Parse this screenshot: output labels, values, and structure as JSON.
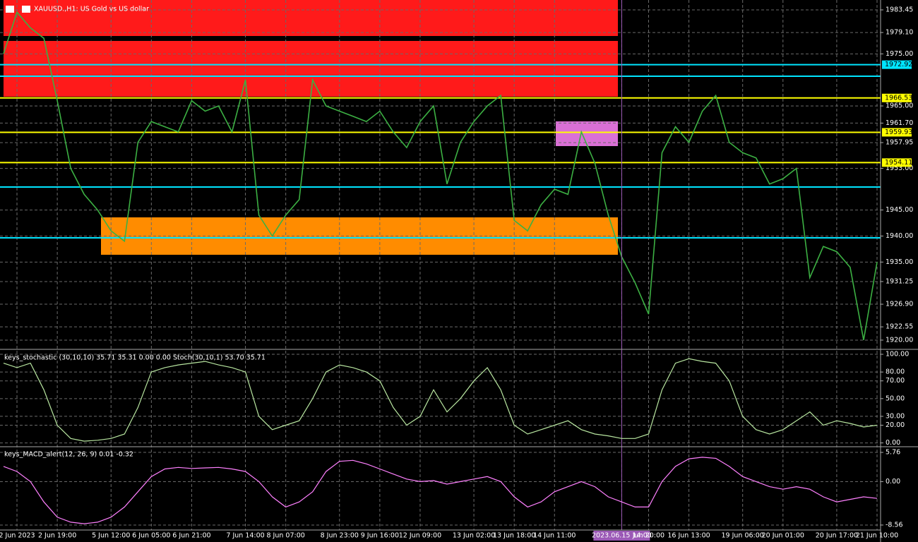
{
  "chart_data": [
    {
      "type": "line",
      "title": "XAUUSD.,H1: US Gold vs US dollar",
      "color": "#3cb043",
      "categories": [
        null,
        "2 Jun 2023",
        null,
        null,
        "2 Jun 19:00",
        null,
        null,
        null,
        "5 Jun 12:00",
        null,
        null,
        "6 Jun 05:00",
        null,
        null,
        "6 Jun 21:00",
        null,
        null,
        null,
        "7 Jun 14:00",
        null,
        null,
        "8 Jun 07:00",
        null,
        null,
        null,
        "8 Jun 23:00",
        null,
        null,
        "9 Jun 16:00",
        null,
        null,
        "12 Jun 09:00",
        null,
        null,
        null,
        "13 Jun 02:00",
        null,
        null,
        "13 Jun 18:00",
        null,
        null,
        "14 Jun 11:00",
        null,
        null,
        null,
        null,
        "2023.06.15 14:00",
        null,
        "Jun 20:00",
        null,
        null,
        "16 Jun 13:00",
        null,
        null,
        null,
        "19 Jun 06:00",
        null,
        null,
        "20 Jun 01:00",
        null,
        null,
        null,
        "20 Jun 17:00",
        null,
        null,
        "21 Jun 10:00"
      ],
      "values": [
        1975,
        1983,
        1980,
        1978,
        1966,
        1953,
        1948,
        1945,
        1941,
        1939,
        1958,
        1962,
        1961,
        1960,
        1966,
        1964,
        1965,
        1960,
        1970,
        1944,
        1940,
        1944,
        1947,
        1970,
        1965,
        1964,
        1963,
        1962,
        1964,
        1960,
        1957,
        1962,
        1965,
        1950,
        1958,
        1962,
        1965,
        1967,
        1943,
        1941,
        1946,
        1949,
        1948,
        1960,
        1954,
        1944,
        1936,
        1931,
        1925,
        1956,
        1961,
        1958,
        1964,
        1967,
        1958,
        1956,
        1955,
        1950,
        1951,
        1953,
        1932,
        1938,
        1937,
        1934,
        1920,
        1935
      ],
      "vline_category": 46,
      "ylim": [
        1918.5,
        1985.35
      ],
      "yticks": [
        {
          "value": 1983.45,
          "label": "1983.45"
        },
        {
          "value": 1979.1,
          "label": "1979.10"
        },
        {
          "value": 1975,
          "label": "1975.00"
        },
        {
          "value": 1965,
          "label": "1965.00"
        },
        {
          "value": 1961.7,
          "label": "1961.70"
        },
        {
          "value": 1957.95,
          "label": "1957.95"
        },
        {
          "value": 1953,
          "label": "1953.00"
        },
        {
          "value": 1945,
          "label": "1945.00"
        },
        {
          "value": 1940,
          "label": "1940.00"
        },
        {
          "value": 1935,
          "label": "1935.00"
        },
        {
          "value": 1931.25,
          "label": "1931.25"
        },
        {
          "value": 1926.9,
          "label": "1926.90"
        },
        {
          "value": 1922.55,
          "label": "1922.55"
        },
        {
          "value": 1920,
          "label": "1920.00"
        }
      ],
      "levels": [
        {
          "value": 1972.92,
          "color": "#00e5ff",
          "labeled": true
        },
        {
          "value": 1970.7,
          "color": "#00e5ff"
        },
        {
          "value": 1966.53,
          "color": "#ffff00",
          "labeled": true
        },
        {
          "value": 1959.93,
          "color": "#ffff00",
          "labeled": true
        },
        {
          "value": 1954.11,
          "color": "#ffff00",
          "labeled": true
        },
        {
          "value": 1949.42,
          "color": "#00e5ff"
        },
        {
          "value": 1939.66,
          "color": "#00e5ff"
        }
      ],
      "grid": true
    },
    {
      "type": "line",
      "title": "keys_stochastic (30,10,10) 35.71 35.31 0.00 0.00 Stoch(30,10,1) 53.70 35.71",
      "color": "#b8e6a0",
      "values": [
        90,
        85,
        90,
        60,
        20,
        5,
        2,
        3,
        5,
        10,
        40,
        80,
        85,
        88,
        90,
        92,
        88,
        85,
        80,
        30,
        15,
        20,
        25,
        50,
        80,
        88,
        85,
        80,
        70,
        40,
        20,
        30,
        60,
        35,
        50,
        70,
        85,
        60,
        20,
        10,
        15,
        20,
        25,
        15,
        10,
        8,
        5,
        5,
        10,
        60,
        90,
        95,
        92,
        90,
        70,
        30,
        15,
        10,
        15,
        25,
        35,
        20,
        25,
        22,
        18,
        20
      ],
      "ylim": [
        -3.5,
        104
      ],
      "yticks": [
        {
          "value": 100,
          "label": "100.00"
        },
        {
          "value": 80,
          "label": "80.00"
        },
        {
          "value": 70,
          "label": "70.00"
        },
        {
          "value": 50,
          "label": "50.00"
        },
        {
          "value": 30,
          "label": "30.00"
        },
        {
          "value": 20,
          "label": "20.00"
        },
        {
          "value": 0,
          "label": "0.00"
        }
      ],
      "grid": true
    },
    {
      "type": "line",
      "title": "keys_MACD_alert(12, 26, 9) 0.01 -0.32",
      "color": "#ff80ff",
      "values": [
        3,
        2,
        0,
        -4,
        -7,
        -8,
        -8.3,
        -8,
        -7,
        -5,
        -2,
        1,
        2.5,
        2.8,
        2.6,
        2.7,
        2.8,
        2.5,
        2,
        0,
        -3,
        -5,
        -4,
        -2,
        2,
        4,
        4.2,
        3.5,
        2.5,
        1.5,
        0.5,
        0,
        0.2,
        -0.5,
        0,
        0.5,
        1,
        0,
        -3,
        -5,
        -4,
        -2,
        -1,
        0,
        -1,
        -3,
        -4,
        -5,
        -5,
        0,
        3,
        4.5,
        4.8,
        4.6,
        3,
        1,
        0,
        -1,
        -1.5,
        -1,
        -1.5,
        -3,
        -4,
        -3.5,
        -3,
        -3.3
      ],
      "ylim": [
        -9.4,
        6.6
      ],
      "yticks": [
        5.76,
        {
          "value": 0,
          "label": "0.00"
        },
        -8.56
      ],
      "grid": true
    }
  ]
}
